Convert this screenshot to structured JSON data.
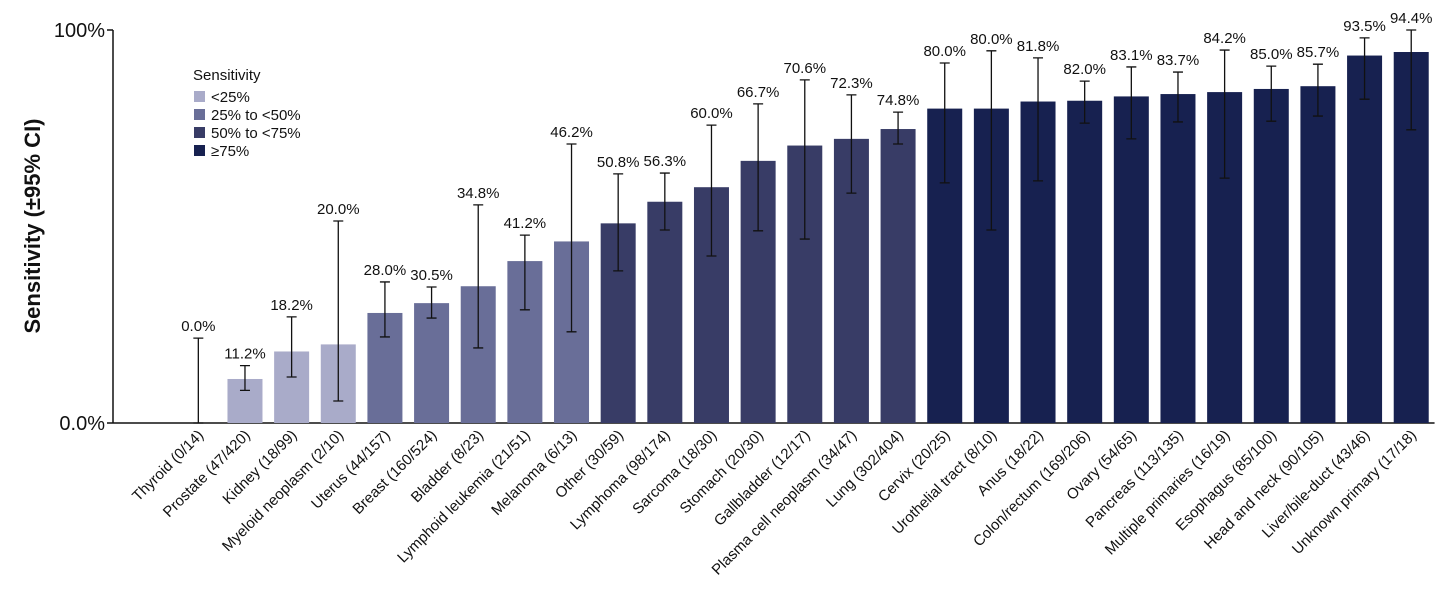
{
  "chart_data": {
    "type": "bar",
    "y_label": "Sensitivity (±95% CI)",
    "categories": [
      "Thyroid (0/14)",
      "Prostate (47/420)",
      "Kidney (18/99)",
      "Myeloid neoplasm (2/10)",
      "Uterus (44/157)",
      "Breast (160/524)",
      "Bladder (8/23)",
      "Lymphoid leukemia (21/51)",
      "Melanoma (6/13)",
      "Other (30/59)",
      "Lymphoma (98/174)",
      "Sarcoma (18/30)",
      "Stomach (20/30)",
      "Gallbladder (12/17)",
      "Plasma cell neoplasm (34/47)",
      "Lung (302/404)",
      "Cervix (20/25)",
      "Urothelial tract (8/10)",
      "Anus (18/22)",
      "Colon/rectum (169/206)",
      "Ovary (54/65)",
      "Pancreas (113/135)",
      "Multiple primaries (16/19)",
      "Esophagus (85/100)",
      "Head and neck (90/105)",
      "Liver/bile-duct (43/46)",
      "Unknown primary (17/18)"
    ],
    "values": [
      0.0,
      11.2,
      18.2,
      20.0,
      28.0,
      30.5,
      34.8,
      41.2,
      46.2,
      50.8,
      56.3,
      60.0,
      66.7,
      70.6,
      72.3,
      74.8,
      80.0,
      80.0,
      81.8,
      82.0,
      83.1,
      83.7,
      84.2,
      85.0,
      85.7,
      93.5,
      94.4
    ],
    "value_labels": [
      "0.0%",
      "11.2%",
      "18.2%",
      "20.0%",
      "28.0%",
      "30.5%",
      "34.8%",
      "41.2%",
      "46.2%",
      "50.8%",
      "56.3%",
      "60.0%",
      "66.7%",
      "70.6%",
      "72.3%",
      "74.8%",
      "80.0%",
      "80.0%",
      "81.8%",
      "82.0%",
      "83.1%",
      "83.7%",
      "84.2%",
      "85.0%",
      "85.7%",
      "93.5%",
      "94.4%"
    ],
    "ci_low": [
      0,
      8.3,
      11.7,
      5.6,
      21.9,
      26.7,
      19.1,
      28.8,
      23.2,
      38.7,
      49.1,
      42.5,
      48.9,
      46.8,
      58.5,
      71.0,
      61.1,
      49.1,
      61.6,
      76.3,
      72.3,
      76.6,
      62.3,
      76.8,
      78.1,
      82.4,
      74.6
    ],
    "ci_high": [
      21.6,
      14.6,
      27.0,
      51.4,
      35.9,
      34.6,
      55.5,
      47.8,
      71.0,
      63.4,
      63.6,
      75.8,
      81.2,
      87.3,
      83.5,
      79.1,
      91.6,
      94.7,
      92.9,
      87.0,
      90.6,
      89.3,
      94.9,
      90.8,
      91.3,
      98.0,
      100
    ],
    "bar_colors": [
      "#a9abc9",
      "#a9abc9",
      "#a9abc9",
      "#a9abc9",
      "#696e98",
      "#696e98",
      "#696e98",
      "#696e98",
      "#696e98",
      "#383c66",
      "#383c66",
      "#383c66",
      "#383c66",
      "#383c66",
      "#383c66",
      "#383c66",
      "#172150",
      "#172150",
      "#172150",
      "#172150",
      "#172150",
      "#172150",
      "#172150",
      "#172150",
      "#172150",
      "#172150",
      "#172150"
    ],
    "ylim": [
      0,
      100
    ],
    "yticks": [
      {
        "value": 0,
        "label": "0.0%"
      },
      {
        "value": 100,
        "label": "100%"
      }
    ],
    "legend": {
      "title": "Sensitivity",
      "items": [
        {
          "label": "<25%",
          "color": "#a9abc9"
        },
        {
          "label": "25% to <50%",
          "color": "#696e98"
        },
        {
          "label": "50% to <75%",
          "color": "#383c66"
        },
        {
          "label": "≥75%",
          "color": "#172150"
        }
      ]
    }
  }
}
